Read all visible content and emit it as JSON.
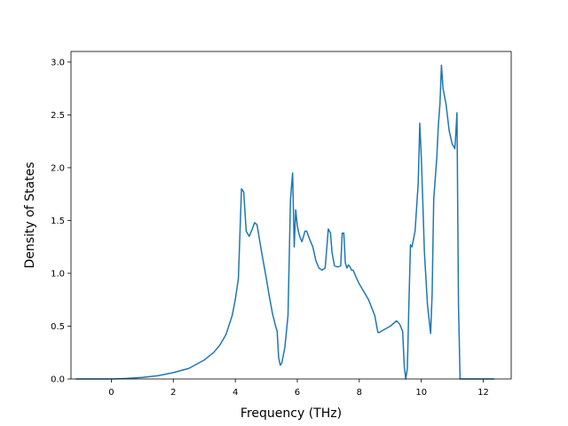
{
  "chart_data": {
    "type": "line",
    "title": "",
    "xlabel": "Frequency (THz)",
    "ylabel": "Density of States",
    "xlim": [
      -1.3,
      12.9
    ],
    "ylim": [
      0,
      3.1
    ],
    "xticks": [
      0,
      2,
      4,
      6,
      8,
      10,
      12
    ],
    "xtick_labels": [
      "0",
      "2",
      "4",
      "6",
      "8",
      "10",
      "12"
    ],
    "yticks": [
      0.0,
      0.5,
      1.0,
      1.5,
      2.0,
      2.5,
      3.0
    ],
    "ytick_labels": [
      "0.0",
      "0.5",
      "1.0",
      "1.5",
      "2.0",
      "2.5",
      "3.0"
    ],
    "grid": false,
    "legend": "none",
    "line_color": "#1f77b4",
    "series": [
      {
        "x": [
          -1.15,
          0,
          0.5,
          1.0,
          1.5,
          2.0,
          2.5,
          3.0,
          3.3,
          3.5,
          3.7,
          3.9,
          4.0,
          4.1,
          4.2,
          4.27,
          4.35,
          4.45,
          4.55,
          4.62,
          4.7,
          4.85,
          5.0,
          5.1,
          5.2,
          5.3,
          5.35,
          5.4,
          5.45,
          5.5,
          5.6,
          5.7,
          5.78,
          5.85,
          5.9,
          5.95,
          6.0,
          6.05,
          6.1,
          6.15,
          6.2,
          6.25,
          6.3,
          6.4,
          6.5,
          6.6,
          6.7,
          6.8,
          6.9,
          7.0,
          7.07,
          7.12,
          7.2,
          7.3,
          7.4,
          7.45,
          7.5,
          7.55,
          7.6,
          7.65,
          7.7,
          7.75,
          7.8,
          7.9,
          8.0,
          8.1,
          8.3,
          8.5,
          8.6,
          8.65,
          8.7,
          9.0,
          9.2,
          9.3,
          9.4,
          9.45,
          9.5,
          9.55,
          9.6,
          9.65,
          9.7,
          9.8,
          9.9,
          9.95,
          10.0,
          10.05,
          10.1,
          10.2,
          10.3,
          10.35,
          10.4,
          10.5,
          10.55,
          10.6,
          10.65,
          10.7,
          10.8,
          10.9,
          11.0,
          11.05,
          11.08,
          11.1,
          11.15,
          11.2,
          11.25,
          11.3,
          12.35
        ],
        "y": [
          0,
          0,
          0.005,
          0.015,
          0.03,
          0.06,
          0.1,
          0.18,
          0.25,
          0.32,
          0.42,
          0.6,
          0.75,
          0.95,
          1.8,
          1.77,
          1.4,
          1.35,
          1.42,
          1.48,
          1.46,
          1.2,
          0.95,
          0.78,
          0.62,
          0.5,
          0.45,
          0.2,
          0.13,
          0.15,
          0.3,
          0.6,
          1.7,
          1.95,
          1.25,
          1.6,
          1.45,
          1.38,
          1.33,
          1.3,
          1.35,
          1.4,
          1.4,
          1.32,
          1.25,
          1.12,
          1.05,
          1.03,
          1.05,
          1.42,
          1.38,
          1.2,
          1.07,
          1.06,
          1.07,
          1.38,
          1.38,
          1.1,
          1.05,
          1.08,
          1.06,
          1.03,
          1.03,
          0.96,
          0.9,
          0.85,
          0.75,
          0.6,
          0.44,
          0.44,
          0.45,
          0.5,
          0.55,
          0.52,
          0.45,
          0.12,
          0.0,
          0.1,
          0.7,
          1.27,
          1.25,
          1.4,
          1.85,
          2.42,
          2.1,
          1.65,
          1.2,
          0.7,
          0.43,
          0.8,
          1.7,
          2.1,
          2.4,
          2.6,
          2.97,
          2.75,
          2.6,
          2.35,
          2.22,
          2.2,
          2.18,
          2.25,
          2.52,
          0.7,
          0.0,
          0.0,
          0.0
        ]
      }
    ]
  }
}
